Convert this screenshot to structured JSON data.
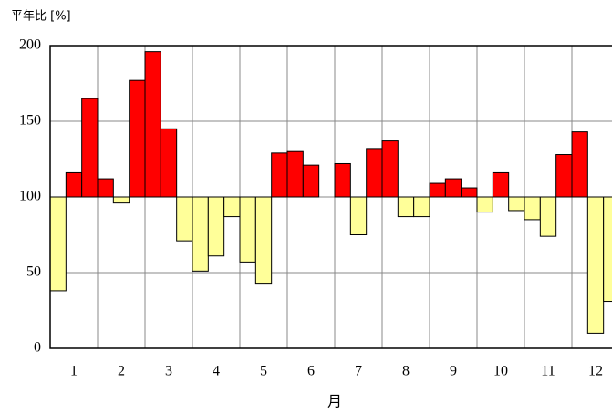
{
  "chart_data": {
    "type": "bar",
    "y_label": "平年比 [%]",
    "x_label": "月",
    "categories": [
      null,
      "1",
      null,
      null,
      "2",
      null,
      null,
      "3",
      null,
      null,
      "4",
      null,
      null,
      "5",
      null,
      null,
      "6",
      null,
      null,
      "7",
      null,
      null,
      "8",
      null,
      null,
      "9",
      null,
      null,
      "10",
      null,
      null,
      "11",
      null,
      null,
      "12",
      null
    ],
    "values": [
      38,
      116,
      165,
      112,
      96,
      177,
      196,
      145,
      71,
      51,
      61,
      87,
      57,
      43,
      129,
      130,
      121,
      100,
      122,
      75,
      132,
      137,
      87,
      87,
      109,
      112,
      106,
      90,
      116,
      91,
      85,
      74,
      128,
      143,
      10,
      31
    ],
    "baseline": 100,
    "above_color": "#ff0000",
    "below_color": "#ffff99",
    "ylim": [
      0,
      200
    ],
    "yticks": [
      0,
      50,
      100,
      150,
      200
    ],
    "grid": true
  }
}
